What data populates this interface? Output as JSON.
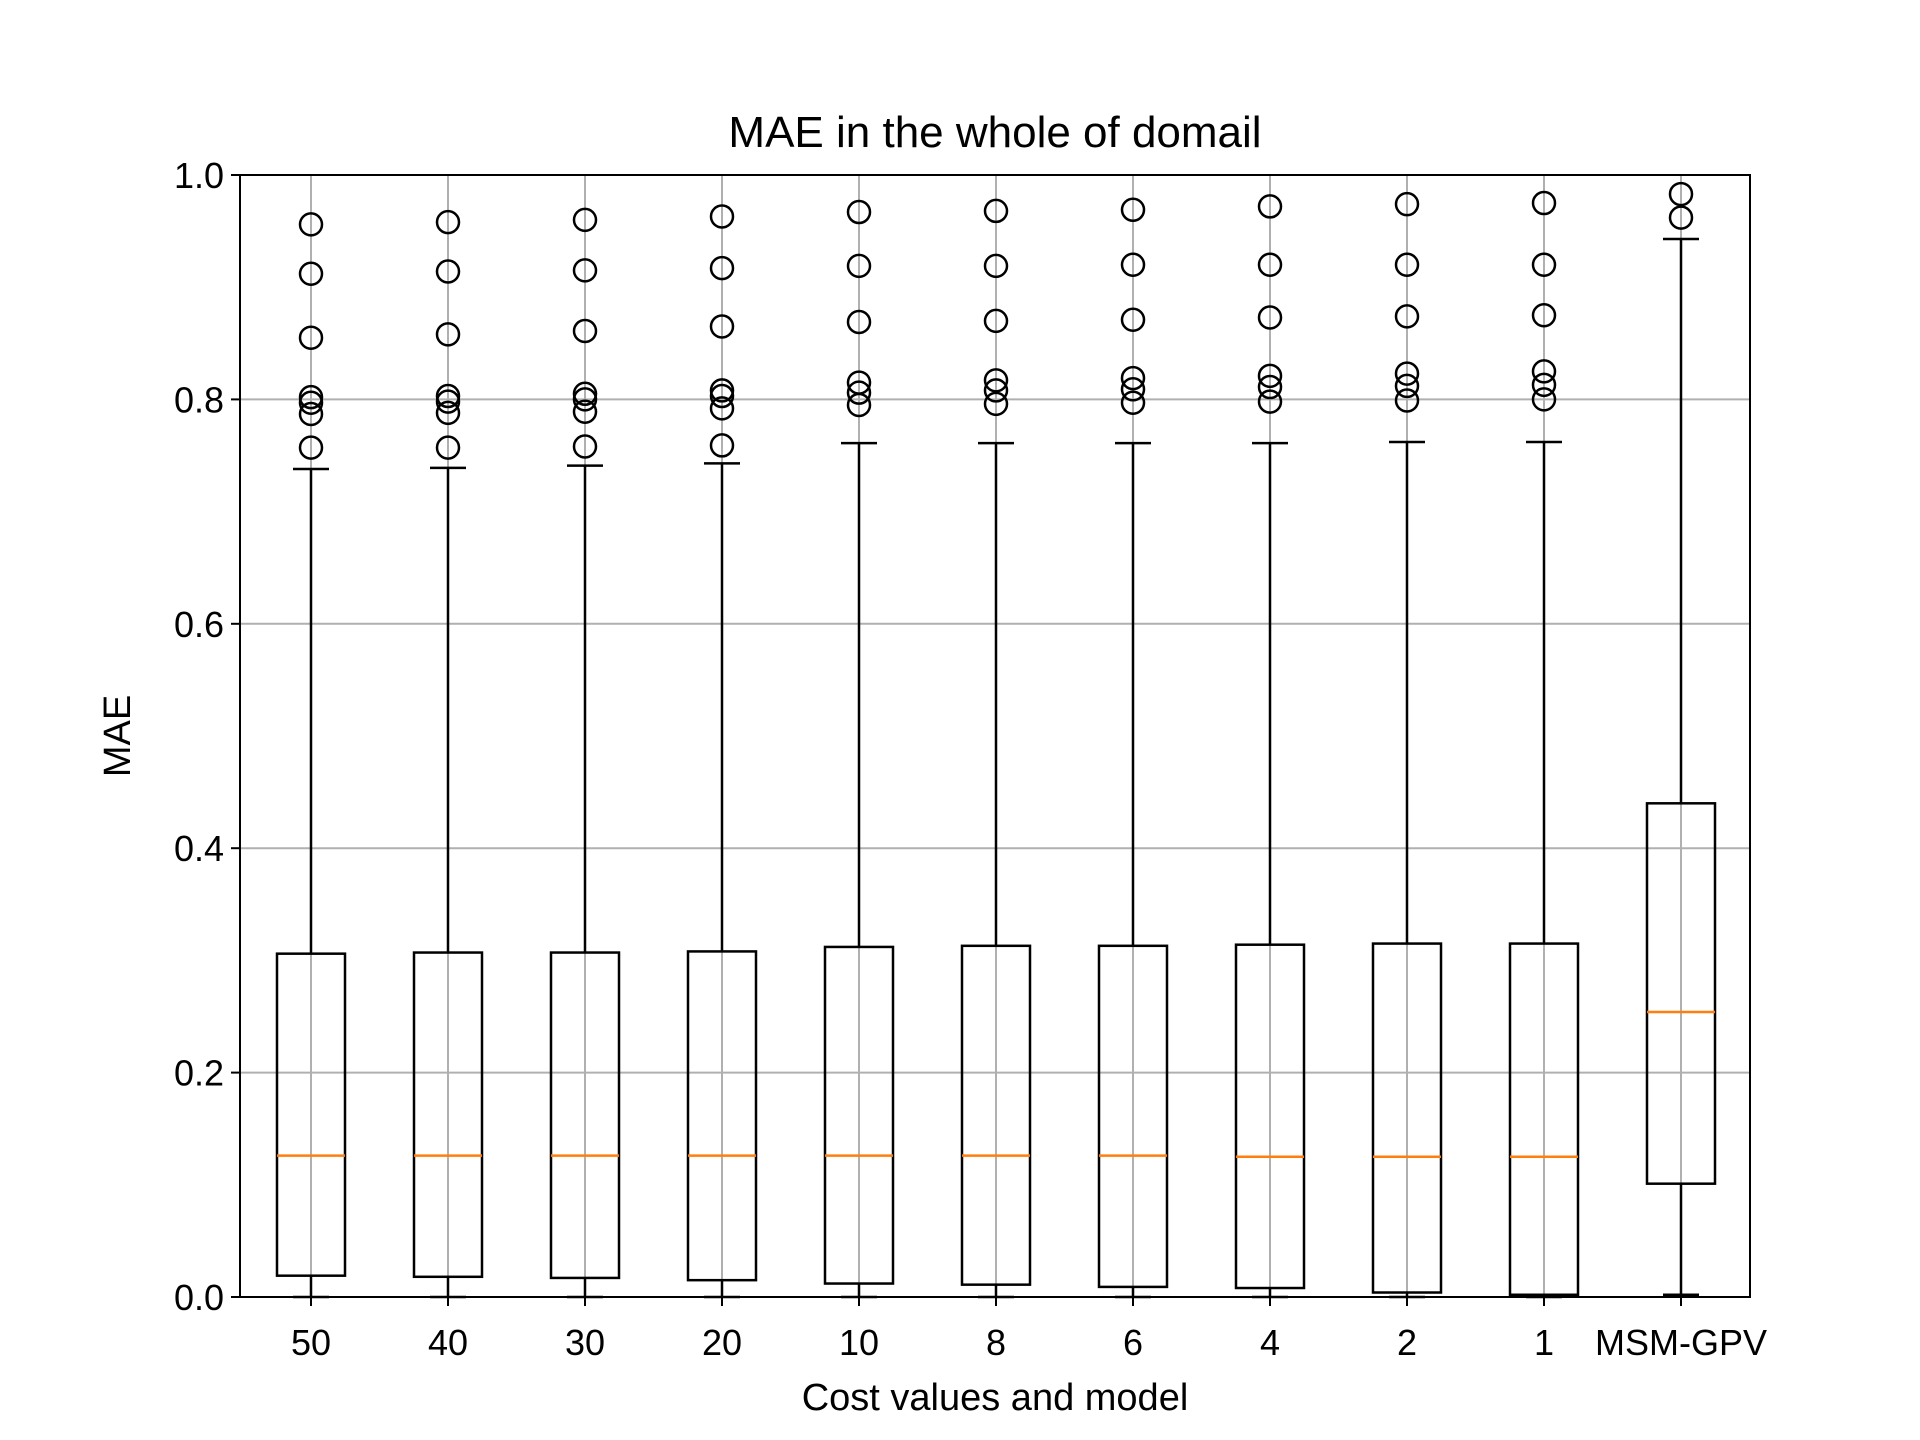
{
  "chart_data": {
    "type": "boxplot",
    "title": "MAE in the whole of domail",
    "xlabel": "Cost values and model",
    "ylabel": "MAE",
    "ylim": [
      0.0,
      1.0
    ],
    "yticks": [
      "0.0",
      "0.2",
      "0.4",
      "0.6",
      "0.8",
      "1.0"
    ],
    "grid": true,
    "categories": [
      "50",
      "40",
      "30",
      "20",
      "10",
      "8",
      "6",
      "4",
      "2",
      "1",
      "MSM-GPV"
    ],
    "boxes": [
      {
        "label": "50",
        "whisker_low": 0.0,
        "q1": 0.019,
        "median": 0.126,
        "q3": 0.306,
        "whisker_high": 0.738,
        "outliers": [
          0.757,
          0.787,
          0.797,
          0.802,
          0.855,
          0.912,
          0.956
        ]
      },
      {
        "label": "40",
        "whisker_low": 0.0,
        "q1": 0.018,
        "median": 0.126,
        "q3": 0.307,
        "whisker_high": 0.739,
        "outliers": [
          0.757,
          0.788,
          0.798,
          0.803,
          0.858,
          0.914,
          0.958
        ]
      },
      {
        "label": "30",
        "whisker_low": 0.0,
        "q1": 0.017,
        "median": 0.126,
        "q3": 0.307,
        "whisker_high": 0.741,
        "outliers": [
          0.758,
          0.789,
          0.8,
          0.805,
          0.861,
          0.915,
          0.96
        ]
      },
      {
        "label": "20",
        "whisker_low": 0.0,
        "q1": 0.015,
        "median": 0.126,
        "q3": 0.308,
        "whisker_high": 0.743,
        "outliers": [
          0.759,
          0.792,
          0.803,
          0.808,
          0.865,
          0.917,
          0.963
        ]
      },
      {
        "label": "10",
        "whisker_low": 0.0,
        "q1": 0.012,
        "median": 0.126,
        "q3": 0.312,
        "whisker_high": 0.761,
        "outliers": [
          0.795,
          0.806,
          0.815,
          0.869,
          0.919,
          0.967
        ]
      },
      {
        "label": "8",
        "whisker_low": 0.0,
        "q1": 0.011,
        "median": 0.126,
        "q3": 0.313,
        "whisker_high": 0.761,
        "outliers": [
          0.796,
          0.808,
          0.817,
          0.87,
          0.919,
          0.968
        ]
      },
      {
        "label": "6",
        "whisker_low": 0.0,
        "q1": 0.009,
        "median": 0.126,
        "q3": 0.313,
        "whisker_high": 0.761,
        "outliers": [
          0.797,
          0.809,
          0.819,
          0.871,
          0.92,
          0.969
        ]
      },
      {
        "label": "4",
        "whisker_low": 0.0,
        "q1": 0.008,
        "median": 0.125,
        "q3": 0.314,
        "whisker_high": 0.761,
        "outliers": [
          0.798,
          0.811,
          0.821,
          0.873,
          0.92,
          0.972
        ]
      },
      {
        "label": "2",
        "whisker_low": 0.0,
        "q1": 0.004,
        "median": 0.125,
        "q3": 0.315,
        "whisker_high": 0.762,
        "outliers": [
          0.799,
          0.812,
          0.823,
          0.874,
          0.92,
          0.974
        ]
      },
      {
        "label": "1",
        "whisker_low": 0.0,
        "q1": 0.002,
        "median": 0.125,
        "q3": 0.315,
        "whisker_high": 0.762,
        "outliers": [
          0.8,
          0.813,
          0.825,
          0.875,
          0.92,
          0.975
        ]
      },
      {
        "label": "MSM-GPV",
        "whisker_low": 0.002,
        "q1": 0.101,
        "median": 0.254,
        "q3": 0.44,
        "whisker_high": 0.943,
        "outliers": [
          0.962,
          0.983
        ]
      }
    ],
    "colors": {
      "box": "#000000",
      "median": "#ff7f0e",
      "grid": "#b0b0b0"
    }
  }
}
